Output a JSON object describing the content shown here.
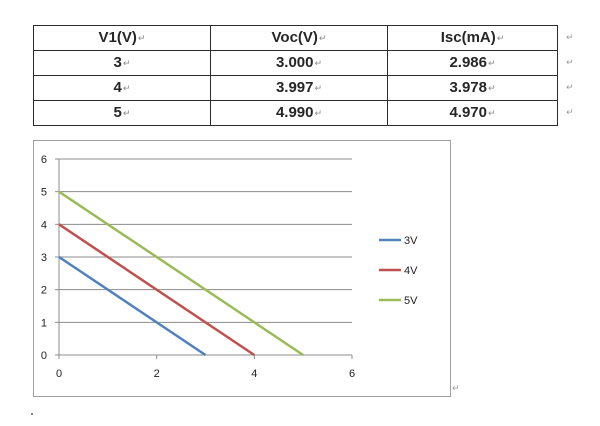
{
  "table": {
    "headers": [
      "V1(V)",
      "Voc(V)",
      "Isc(mA)"
    ],
    "rows": [
      [
        "3",
        "3.000",
        "2.986"
      ],
      [
        "4",
        "3.997",
        "3.978"
      ],
      [
        "5",
        "4.990",
        "4.970"
      ]
    ],
    "cell_mark": "↵",
    "row_mark": "↵"
  },
  "chart_data": {
    "type": "line",
    "title": "",
    "xlabel": "",
    "ylabel": "",
    "xlim": [
      0,
      6
    ],
    "ylim": [
      0,
      6
    ],
    "xticks": [
      0,
      2,
      4,
      6
    ],
    "yticks": [
      0,
      1,
      2,
      3,
      4,
      5,
      6
    ],
    "grid": "horizontal",
    "legend_position": "right",
    "series": [
      {
        "name": "3V",
        "color": "#4f81bd",
        "x": [
          0,
          3
        ],
        "y": [
          3,
          0
        ]
      },
      {
        "name": "4V",
        "color": "#c0504d",
        "x": [
          0,
          4
        ],
        "y": [
          4,
          0
        ]
      },
      {
        "name": "5V",
        "color": "#9bbb59",
        "x": [
          0,
          5
        ],
        "y": [
          5,
          0
        ]
      }
    ]
  },
  "paragraph_mark": "↵"
}
